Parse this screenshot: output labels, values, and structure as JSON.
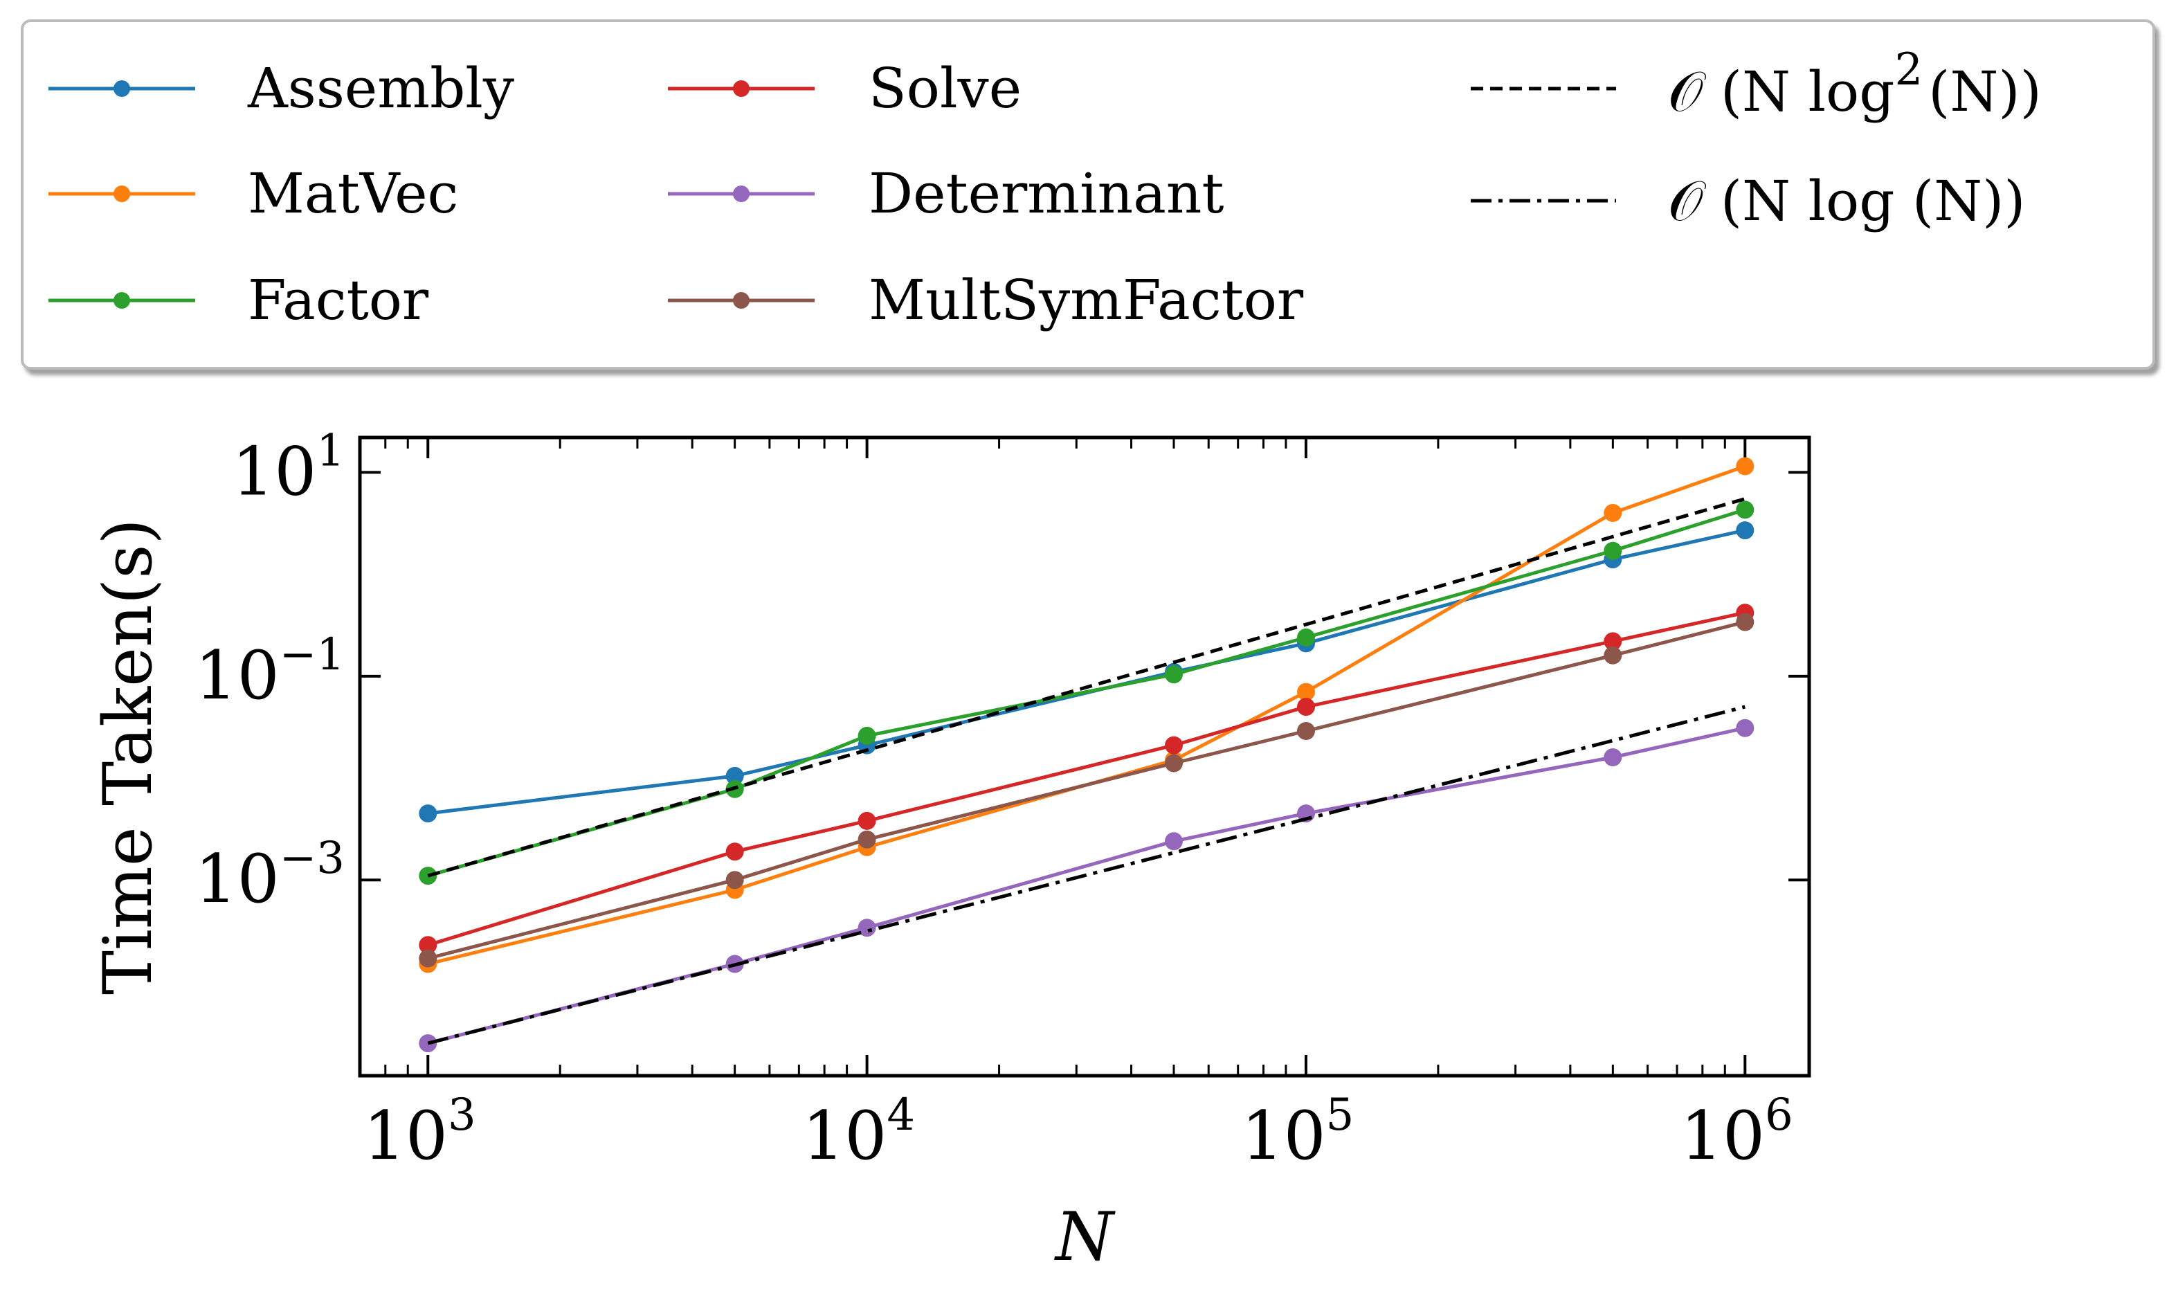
{
  "chart_data": {
    "type": "line",
    "xscale": "log",
    "yscale": "log",
    "xlabel": "N",
    "ylabel": "Time Taken(s)",
    "xlim": [
      700,
      1400000
    ],
    "ylim": [
      1.2e-05,
      22
    ],
    "xticks": [
      {
        "value": 1000,
        "base": "10",
        "exp": "3"
      },
      {
        "value": 10000,
        "base": "10",
        "exp": "4"
      },
      {
        "value": 100000,
        "base": "10",
        "exp": "5"
      },
      {
        "value": 1000000,
        "base": "10",
        "exp": "6"
      }
    ],
    "yticks": [
      {
        "value": 0.001,
        "base": "10",
        "exp": "−3"
      },
      {
        "value": 0.1,
        "base": "10",
        "exp": "−1"
      },
      {
        "value": 10,
        "base": "10",
        "exp": "1"
      }
    ],
    "legend_placement": "above plot",
    "series": [
      {
        "name": "Assembly",
        "color": "#1f77b4",
        "x": [
          1000,
          5000,
          10000,
          50000,
          100000,
          500000,
          1000000
        ],
        "y": [
          0.0045,
          0.0105,
          0.021,
          0.11,
          0.21,
          1.4,
          2.7
        ]
      },
      {
        "name": "MatVec",
        "color": "#ff7f0e",
        "x": [
          1000,
          5000,
          10000,
          50000,
          100000,
          500000,
          1000000
        ],
        "y": [
          0.00015,
          0.0008,
          0.0021,
          0.015,
          0.07,
          4.0,
          11.5
        ]
      },
      {
        "name": "Factor",
        "color": "#2ca02c",
        "x": [
          1000,
          5000,
          10000,
          50000,
          100000,
          500000,
          1000000
        ],
        "y": [
          0.0011,
          0.0078,
          0.026,
          0.104,
          0.24,
          1.7,
          4.3
        ]
      },
      {
        "name": "Solve",
        "color": "#d62728",
        "x": [
          1000,
          5000,
          10000,
          50000,
          100000,
          500000,
          1000000
        ],
        "y": [
          0.00023,
          0.0019,
          0.0038,
          0.021,
          0.05,
          0.22,
          0.42
        ]
      },
      {
        "name": "Determinant",
        "color": "#9467bd",
        "x": [
          1000,
          5000,
          10000,
          50000,
          100000,
          500000,
          1000000
        ],
        "y": [
          2.5e-05,
          0.00015,
          0.00034,
          0.0024,
          0.0045,
          0.016,
          0.031
        ]
      },
      {
        "name": "MultSymFactor",
        "color": "#8c564b",
        "x": [
          1000,
          5000,
          10000,
          50000,
          100000,
          500000,
          1000000
        ],
        "y": [
          0.00017,
          0.001,
          0.0025,
          0.014,
          0.029,
          0.16,
          0.34
        ]
      },
      {
        "name": "O(N log²(N))",
        "color": "#000000",
        "style": "dashed",
        "x": [
          1000,
          1000000
        ],
        "y": [
          0.0011,
          5.5
        ]
      },
      {
        "name": "O(N log(N))",
        "color": "#000000",
        "style": "dashdot",
        "x": [
          1000,
          1000000
        ],
        "y": [
          2.5e-05,
          0.05
        ]
      }
    ]
  },
  "legend": {
    "items": [
      {
        "label": "Assembly"
      },
      {
        "label": "MatVec"
      },
      {
        "label": "Factor"
      },
      {
        "label": "Solve"
      },
      {
        "label": "Determinant"
      },
      {
        "label": "MultSymFactor"
      }
    ],
    "ref1": {
      "prefix": "𝒪 (N log",
      "sup": "2",
      "suffix": "(N))"
    },
    "ref2": {
      "text": "𝒪 (N log (N))"
    }
  }
}
